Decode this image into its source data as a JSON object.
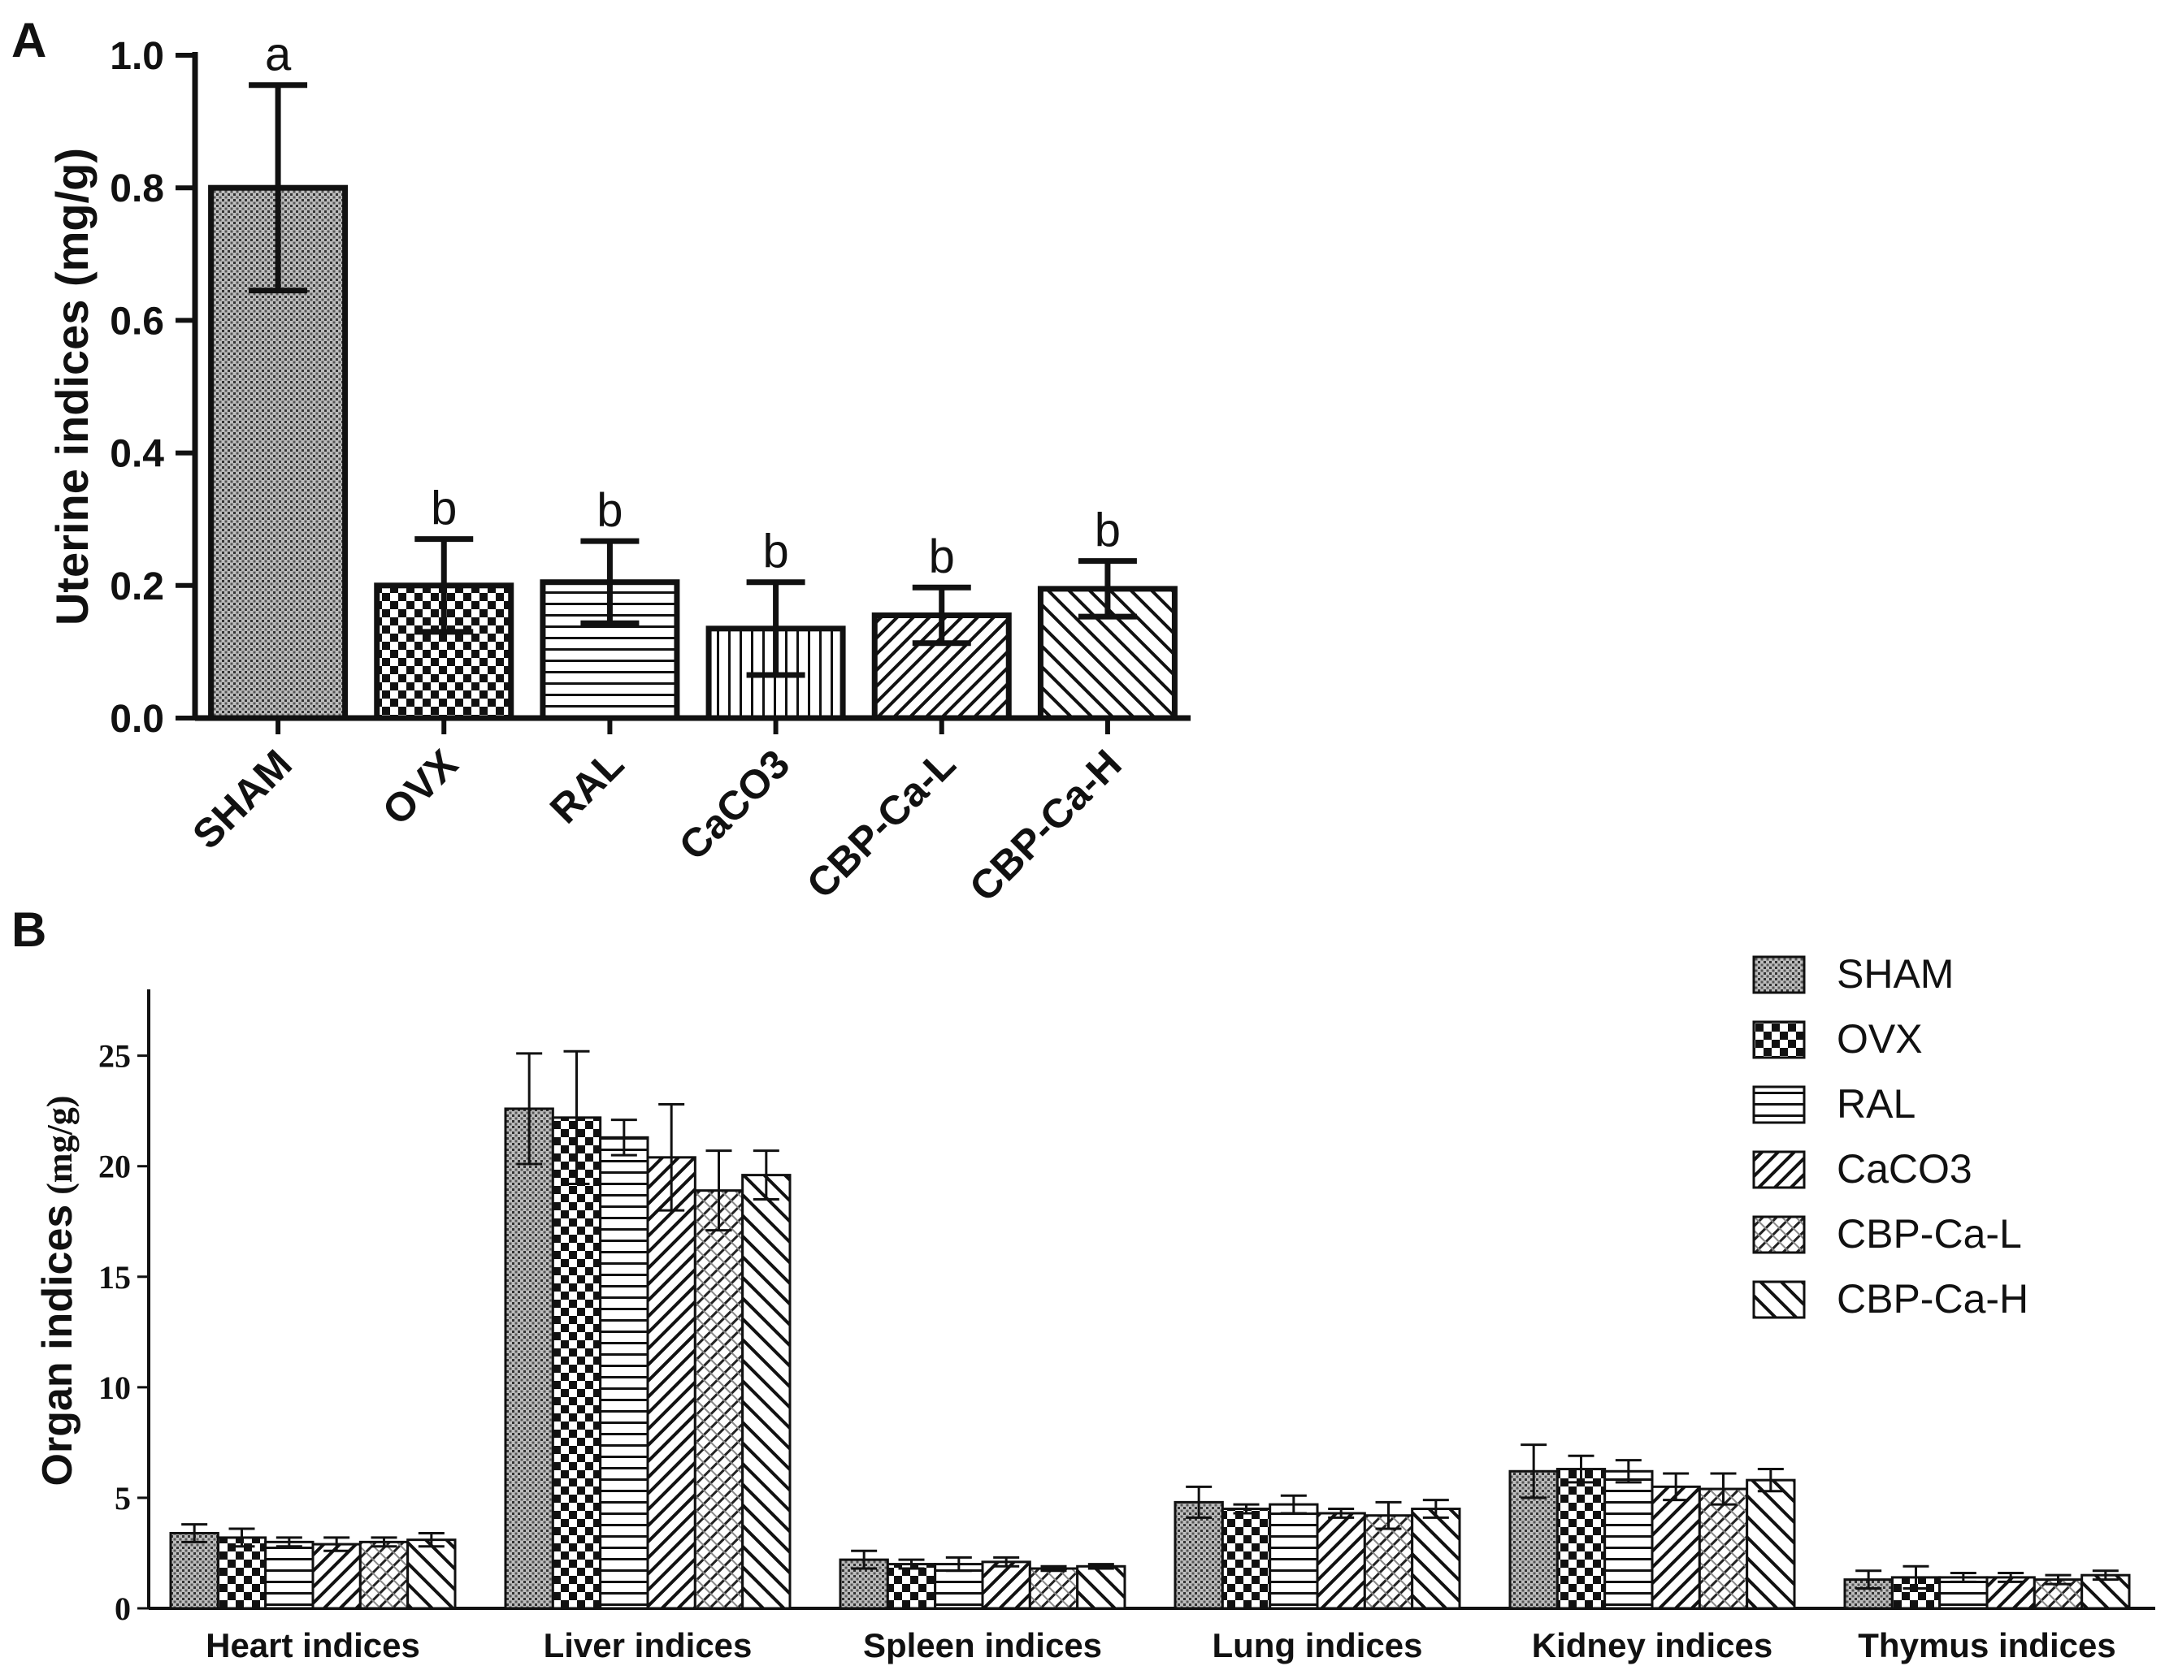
{
  "chart_data": [
    {
      "panel": "A",
      "type": "bar",
      "ylabel": "Uterine indices (mg/g)",
      "xlabel": "",
      "ylim": [
        0,
        1.0
      ],
      "yticks": [
        "0.0",
        "0.2",
        "0.4",
        "0.6",
        "0.8",
        "1.0"
      ],
      "ytick_values": [
        0,
        0.2,
        0.4,
        0.6,
        0.8,
        1.0
      ],
      "categories": [
        "SHAM",
        "OVX",
        "RAL",
        "CaCO3",
        "CBP-Ca-L",
        "CBP-Ca-H"
      ],
      "values": [
        0.8,
        0.2,
        0.205,
        0.135,
        0.155,
        0.195
      ],
      "errors": [
        0.155,
        0.07,
        0.062,
        0.07,
        0.042,
        0.042
      ],
      "significance": [
        "a",
        "b",
        "b",
        "b",
        "b",
        "b"
      ],
      "patterns": [
        "dense-dots",
        "checker",
        "hlines",
        "vlines",
        "diag-fwd",
        "diag-back"
      ]
    },
    {
      "panel": "B",
      "type": "bar",
      "ylabel": "Organ indices",
      "ylabel_unit": "(mg/g)",
      "xlabel": "",
      "ylim": [
        0,
        28
      ],
      "yticks": [
        "0",
        "5",
        "10",
        "15",
        "20",
        "25"
      ],
      "ytick_values": [
        0,
        5,
        10,
        15,
        20,
        25
      ],
      "categories": [
        "Heart indices",
        "Liver indices",
        "Spleen indices",
        "Lung indices",
        "Kidney indices",
        "Thymus indices"
      ],
      "series": [
        {
          "name": "SHAM",
          "pattern": "dense-dots",
          "values": [
            3.4,
            22.6,
            2.2,
            4.8,
            6.2,
            1.3
          ],
          "errors": [
            0.4,
            2.5,
            0.4,
            0.7,
            1.2,
            0.4
          ]
        },
        {
          "name": "OVX",
          "pattern": "checker",
          "values": [
            3.2,
            22.2,
            2.0,
            4.5,
            6.3,
            1.4
          ],
          "errors": [
            0.4,
            3.0,
            0.2,
            0.2,
            0.6,
            0.5
          ]
        },
        {
          "name": "RAL",
          "pattern": "hlines",
          "values": [
            3.0,
            21.3,
            2.0,
            4.7,
            6.2,
            1.4
          ],
          "errors": [
            0.2,
            0.8,
            0.3,
            0.4,
            0.5,
            0.2
          ]
        },
        {
          "name": "CaCO3",
          "pattern": "diag-fwd",
          "values": [
            2.9,
            20.4,
            2.1,
            4.3,
            5.5,
            1.4
          ],
          "errors": [
            0.3,
            2.4,
            0.2,
            0.2,
            0.6,
            0.2
          ]
        },
        {
          "name": "CBP-Ca-L",
          "pattern": "diag-cross",
          "values": [
            3.0,
            18.9,
            1.8,
            4.2,
            5.4,
            1.3
          ],
          "errors": [
            0.2,
            1.8,
            0.1,
            0.6,
            0.7,
            0.2
          ]
        },
        {
          "name": "CBP-Ca-H",
          "pattern": "diag-back",
          "values": [
            3.1,
            19.6,
            1.9,
            4.5,
            5.8,
            1.5
          ],
          "errors": [
            0.3,
            1.1,
            0.1,
            0.4,
            0.5,
            0.2
          ]
        }
      ]
    }
  ],
  "panels": {
    "a_label": "A",
    "b_label": "B"
  },
  "colors": {
    "ink": "#111111",
    "background": "#ffffff"
  }
}
